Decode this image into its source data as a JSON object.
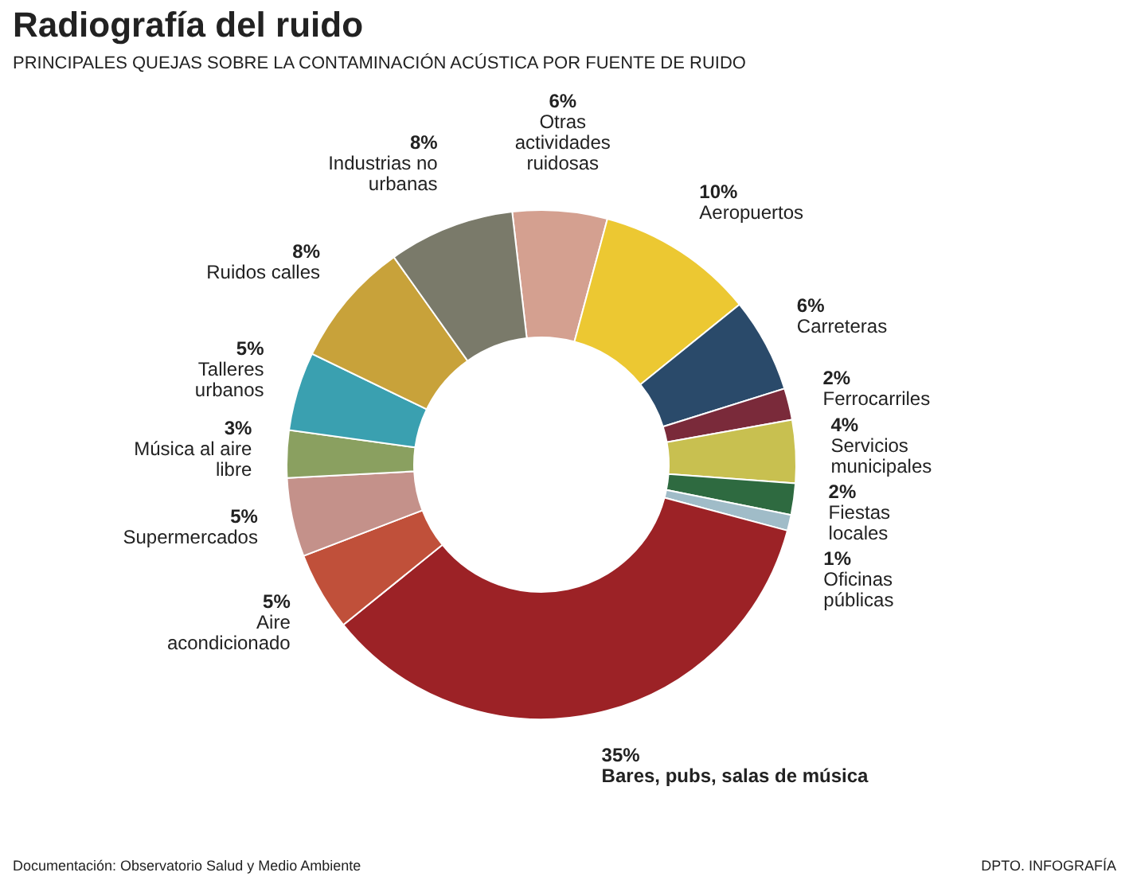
{
  "chart_data": {
    "type": "donut",
    "title": "Radiografía del ruido",
    "subtitle": "PRINCIPALES QUEJAS SOBRE LA CONTAMINACIÓN ACÚSTICA POR FUENTE DE RUIDO",
    "categories": [
      "Otras actividades ruidosas",
      "Aeropuertos",
      "Carreteras",
      "Ferrocarriles",
      "Servicios municipales",
      "Fiestas locales",
      "Oficinas públicas",
      "Bares, pubs, salas de música",
      "Aire acondicionado",
      "Supermercados",
      "Música al aire libre",
      "Talleres urbanos",
      "Ruidos calles",
      "Industrias no urbanas"
    ],
    "values": [
      6,
      10,
      6,
      2,
      4,
      2,
      1,
      35,
      5,
      5,
      3,
      5,
      8,
      8
    ],
    "value_labels": [
      "6%",
      "10%",
      "6%",
      "2%",
      "4%",
      "2%",
      "1%",
      "35%",
      "5%",
      "5%",
      "3%",
      "5%",
      "8%",
      "8%"
    ],
    "colors": [
      "#d4a090",
      "#ecc832",
      "#2a4a6a",
      "#7a2a3a",
      "#c8c050",
      "#2e6a40",
      "#a0bcc8",
      "#9c2226",
      "#c0503a",
      "#c4918a",
      "#8aa060",
      "#3aa0b0",
      "#c8a23a",
      "#7a7a6a"
    ],
    "annotations": [
      "Documentación: Observatorio Salud y Medio Ambiente",
      "DPTO. INFOGRAFÍA"
    ]
  }
}
